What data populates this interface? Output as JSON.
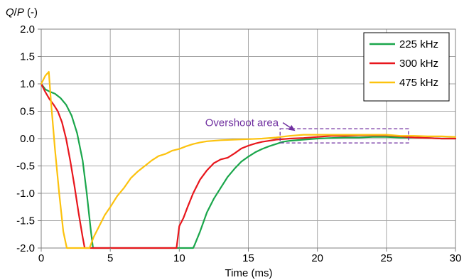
{
  "chart_data": {
    "type": "line",
    "title": "",
    "ylabel": "",
    "ylabel_parts": {
      "italic_q": "Q",
      "slash": "/",
      "italic_p": "P",
      "unit": " (-)"
    },
    "xlabel": "Time (ms)",
    "xlim": [
      0,
      30
    ],
    "ylim": [
      -2.0,
      2.0
    ],
    "xticks": [
      0,
      5,
      10,
      15,
      20,
      25,
      30
    ],
    "xtick_labels": [
      "0",
      "5",
      "10",
      "15",
      "20",
      "25",
      "30"
    ],
    "yticks": [
      2.0,
      1.5,
      1.0,
      0.5,
      0.0,
      -0.5,
      -1.0,
      -1.5,
      -2.0
    ],
    "ytick_labels": [
      "2.0",
      "1.5",
      "1.0",
      "0.5",
      "0.0",
      "-0.5",
      "-1.0",
      "-1.5",
      "-2.0"
    ],
    "grid": true,
    "legend_position": "top-right",
    "series": [
      {
        "name": "225 kHz",
        "color": "#1aa64b",
        "x": [
          0,
          0.3,
          0.6,
          1.0,
          1.4,
          1.8,
          2.2,
          2.6,
          3.0,
          3.3,
          3.6,
          3.75,
          3.8,
          5.0,
          8.0,
          10.5,
          11.0,
          11.1,
          11.5,
          12.0,
          12.5,
          13.0,
          13.5,
          14.0,
          14.5,
          15.0,
          15.5,
          16.0,
          16.5,
          17.0,
          17.5,
          18.0,
          19.0,
          20.0,
          21.0,
          22.0,
          23.0,
          24.0,
          25.0,
          26.0,
          27.0,
          28.0,
          29.0,
          30.0
        ],
        "y": [
          1.0,
          0.9,
          0.86,
          0.82,
          0.74,
          0.62,
          0.42,
          0.1,
          -0.4,
          -1.0,
          -1.7,
          -2.0,
          -2.0,
          -2.0,
          -2.0,
          -2.0,
          -2.0,
          -1.95,
          -1.7,
          -1.35,
          -1.1,
          -0.9,
          -0.7,
          -0.55,
          -0.42,
          -0.33,
          -0.25,
          -0.19,
          -0.14,
          -0.1,
          -0.06,
          -0.04,
          -0.02,
          0.0,
          0.01,
          0.02,
          0.02,
          0.03,
          0.03,
          0.02,
          0.02,
          0.01,
          0.0,
          0.0
        ]
      },
      {
        "name": "300 kHz",
        "color": "#e8161c",
        "x": [
          0,
          0.3,
          0.6,
          0.9,
          1.2,
          1.5,
          1.8,
          2.1,
          2.4,
          2.7,
          3.0,
          3.15,
          3.2,
          5.0,
          8.0,
          9.8,
          9.85,
          10.0,
          10.3,
          10.6,
          11.0,
          11.5,
          12.0,
          12.5,
          13.0,
          13.5,
          14.0,
          14.5,
          15.0,
          15.5,
          16.0,
          16.5,
          17.0,
          17.5,
          18.0,
          19.0,
          20.0,
          21.0,
          22.0,
          23.0,
          24.0,
          25.0,
          26.0,
          27.0,
          28.0,
          29.0,
          30.0
        ],
        "y": [
          1.0,
          0.85,
          0.72,
          0.62,
          0.5,
          0.3,
          0.0,
          -0.4,
          -0.85,
          -1.35,
          -1.8,
          -2.0,
          -2.0,
          -2.0,
          -2.0,
          -2.0,
          -1.9,
          -1.6,
          -1.45,
          -1.25,
          -1.0,
          -0.75,
          -0.58,
          -0.45,
          -0.38,
          -0.35,
          -0.27,
          -0.18,
          -0.13,
          -0.09,
          -0.06,
          -0.04,
          -0.02,
          -0.01,
          0.0,
          0.01,
          0.03,
          0.05,
          0.05,
          0.06,
          0.06,
          0.06,
          0.04,
          0.02,
          0.01,
          0.0,
          0.0
        ]
      },
      {
        "name": "475 kHz",
        "color": "#fcc20e",
        "x": [
          0,
          0.3,
          0.55,
          0.7,
          1.0,
          1.3,
          1.6,
          1.85,
          1.9,
          3.5,
          3.8,
          4.2,
          4.6,
          5.0,
          5.5,
          6.0,
          6.5,
          7.0,
          7.5,
          8.0,
          8.5,
          9.0,
          9.5,
          10.0,
          10.5,
          11.0,
          11.5,
          12.0,
          13.0,
          14.0,
          15.0,
          16.0,
          17.0,
          18.0,
          19.0,
          20.0,
          21.0,
          22.0,
          23.0,
          24.0,
          25.0,
          25.5,
          26.0,
          27.0,
          28.0,
          29.0,
          30.0
        ],
        "y": [
          1.0,
          1.15,
          1.22,
          0.7,
          -0.2,
          -1.0,
          -1.7,
          -2.0,
          -2.0,
          -2.0,
          -1.8,
          -1.6,
          -1.4,
          -1.25,
          -1.05,
          -0.9,
          -0.72,
          -0.6,
          -0.5,
          -0.4,
          -0.32,
          -0.28,
          -0.22,
          -0.19,
          -0.14,
          -0.1,
          -0.07,
          -0.05,
          -0.03,
          -0.02,
          -0.01,
          0.0,
          0.02,
          0.05,
          0.07,
          0.07,
          0.07,
          0.07,
          0.07,
          0.07,
          0.07,
          0.06,
          0.05,
          0.05,
          0.04,
          0.04,
          0.03
        ]
      }
    ],
    "annotations": [
      {
        "text": "Overshoot area",
        "color": "#7030a0",
        "box": {
          "x0": 17.3,
          "x1": 26.6,
          "y0": -0.08,
          "y1": 0.18
        },
        "arrow_from": [
          17.5,
          0.29
        ],
        "arrow_to": [
          18.4,
          0.14
        ]
      }
    ]
  }
}
